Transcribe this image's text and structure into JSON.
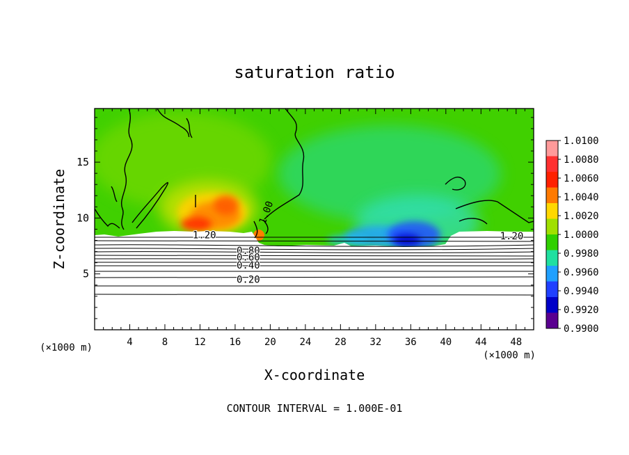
{
  "chart_data": {
    "type": "heatmap",
    "title": "saturation ratio",
    "xlabel": "X-coordinate",
    "ylabel": "Z-coordinate",
    "x_unit": "(×1000 m)",
    "y_unit": "(×1000 m)",
    "xlim": [
      0,
      50
    ],
    "ylim": [
      0,
      19.8
    ],
    "x_ticks": [
      4,
      8,
      12,
      16,
      20,
      24,
      28,
      32,
      36,
      40,
      44,
      48
    ],
    "x_ticklabels": [
      "4",
      "8",
      "12",
      "16",
      "20",
      "24",
      "28",
      "32",
      "36",
      "40",
      "44",
      "48"
    ],
    "y_ticks": [
      5,
      10,
      15
    ],
    "y_ticklabels": [
      "5",
      "10",
      "15"
    ],
    "colorbar": {
      "min": 0.99,
      "max": 1.01,
      "labels": [
        "1.0100",
        "1.0080",
        "1.0060",
        "1.0040",
        "1.0020",
        "1.0000",
        "0.9980",
        "0.9960",
        "0.9940",
        "0.9920",
        "0.9900"
      ],
      "colors": [
        "#ff9a9a",
        "#ff3030",
        "#ff2000",
        "#ff7a00",
        "#ffd800",
        "#a0e000",
        "#30d000",
        "#20e0a0",
        "#20a0ff",
        "#2040ff",
        "#0000c8",
        "#5a0090"
      ]
    },
    "contour_labels": [
      {
        "text": "1.20",
        "x": 12.5,
        "z": 8.5
      },
      {
        "text": "1.00",
        "x": 19.5,
        "z": 10.5
      },
      {
        "text": "0.80",
        "x": 17.5,
        "z": 7.1
      },
      {
        "text": "0.60",
        "x": 17.5,
        "z": 6.5
      },
      {
        "text": "0.40",
        "x": 17.5,
        "z": 5.8
      },
      {
        "text": "0.20",
        "x": 17.5,
        "z": 4.5
      },
      {
        "text": "1.20",
        "x": 47.5,
        "z": 8.4
      }
    ],
    "footer": "CONTOUR INTERVAL = 1.000E-01"
  }
}
